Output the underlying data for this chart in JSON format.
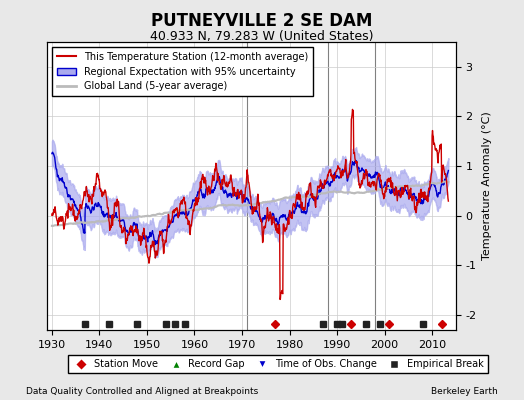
{
  "title": "PUTNEYVILLE 2 SE DAM",
  "subtitle": "40.933 N, 79.283 W (United States)",
  "ylabel": "Temperature Anomaly (°C)",
  "xlabel_left": "Data Quality Controlled and Aligned at Breakpoints",
  "xlabel_right": "Berkeley Earth",
  "ylim": [
    -2.3,
    3.5
  ],
  "xlim": [
    1929,
    2015
  ],
  "yticks": [
    -2,
    -1,
    0,
    1,
    2,
    3
  ],
  "xticks": [
    1930,
    1940,
    1950,
    1960,
    1970,
    1980,
    1990,
    2000,
    2010
  ],
  "bg_color": "#e8e8e8",
  "plot_bg_color": "#ffffff",
  "grid_color": "#cccccc",
  "station_line_color": "#cc0000",
  "regional_line_color": "#0000cc",
  "regional_fill_color": "#aaaaee",
  "global_line_color": "#bbbbbb",
  "empirical_break_years": [
    1937,
    1942,
    1948,
    1954,
    1956,
    1958,
    1987,
    1990,
    1991,
    1996,
    1999,
    2008
  ],
  "station_move_years": [
    1977,
    1993,
    2001,
    2012
  ],
  "vertical_line_years": [
    1971,
    1988,
    1998
  ],
  "seed": 42
}
